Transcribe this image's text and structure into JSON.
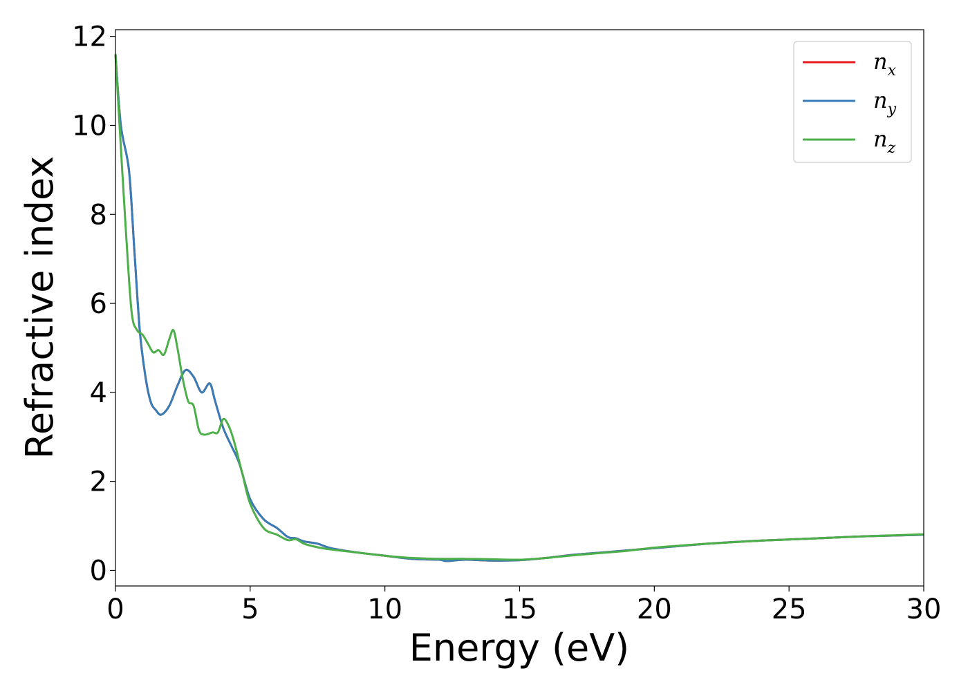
{
  "chart_data": {
    "type": "line",
    "xlabel": "Energy (eV)",
    "ylabel": "Refractive index",
    "xlim": [
      0,
      30
    ],
    "ylim": [
      -0.35,
      12.15
    ],
    "xticks": [
      0,
      5,
      10,
      15,
      20,
      25,
      30
    ],
    "yticks": [
      0,
      2,
      4,
      6,
      8,
      10,
      12
    ],
    "grid": false,
    "legend_position": "top-right",
    "series": [
      {
        "name": "n",
        "subscript": "x",
        "color": "#e41a1c",
        "points": [
          [
            0,
            11.6
          ],
          [
            0.2,
            10.0
          ],
          [
            0.5,
            9.0
          ],
          [
            0.7,
            7.2
          ],
          [
            0.9,
            5.4
          ],
          [
            1.1,
            4.4
          ],
          [
            1.3,
            3.8
          ],
          [
            1.5,
            3.6
          ],
          [
            1.7,
            3.5
          ],
          [
            2.0,
            3.7
          ],
          [
            2.3,
            4.15
          ],
          [
            2.6,
            4.5
          ],
          [
            2.9,
            4.35
          ],
          [
            3.2,
            4.0
          ],
          [
            3.5,
            4.2
          ],
          [
            3.7,
            3.8
          ],
          [
            4.0,
            3.2
          ],
          [
            4.3,
            2.8
          ],
          [
            4.6,
            2.4
          ],
          [
            5.0,
            1.6
          ],
          [
            5.5,
            1.15
          ],
          [
            6.0,
            0.95
          ],
          [
            6.4,
            0.75
          ],
          [
            6.7,
            0.72
          ],
          [
            7.0,
            0.65
          ],
          [
            7.5,
            0.6
          ],
          [
            8.0,
            0.5
          ],
          [
            9.0,
            0.4
          ],
          [
            10.0,
            0.33
          ],
          [
            11.0,
            0.26
          ],
          [
            12.0,
            0.24
          ],
          [
            12.3,
            0.21
          ],
          [
            13.0,
            0.24
          ],
          [
            14.0,
            0.22
          ],
          [
            15.0,
            0.23
          ],
          [
            16.0,
            0.28
          ],
          [
            17.0,
            0.35
          ],
          [
            18.0,
            0.4
          ],
          [
            19.0,
            0.45
          ],
          [
            20.0,
            0.5
          ],
          [
            22.0,
            0.6
          ],
          [
            24.0,
            0.67
          ],
          [
            26.0,
            0.72
          ],
          [
            28.0,
            0.77
          ],
          [
            30.0,
            0.8
          ]
        ]
      },
      {
        "name": "n",
        "subscript": "y",
        "color": "#377eb8",
        "points": [
          [
            0,
            11.6
          ],
          [
            0.2,
            10.0
          ],
          [
            0.5,
            9.0
          ],
          [
            0.7,
            7.2
          ],
          [
            0.9,
            5.4
          ],
          [
            1.1,
            4.4
          ],
          [
            1.3,
            3.8
          ],
          [
            1.5,
            3.6
          ],
          [
            1.7,
            3.5
          ],
          [
            2.0,
            3.7
          ],
          [
            2.3,
            4.15
          ],
          [
            2.6,
            4.5
          ],
          [
            2.9,
            4.35
          ],
          [
            3.2,
            4.0
          ],
          [
            3.5,
            4.2
          ],
          [
            3.7,
            3.8
          ],
          [
            4.0,
            3.2
          ],
          [
            4.3,
            2.8
          ],
          [
            4.6,
            2.4
          ],
          [
            5.0,
            1.6
          ],
          [
            5.5,
            1.15
          ],
          [
            6.0,
            0.95
          ],
          [
            6.4,
            0.75
          ],
          [
            6.7,
            0.72
          ],
          [
            7.0,
            0.65
          ],
          [
            7.5,
            0.6
          ],
          [
            8.0,
            0.5
          ],
          [
            9.0,
            0.4
          ],
          [
            10.0,
            0.33
          ],
          [
            11.0,
            0.26
          ],
          [
            12.0,
            0.24
          ],
          [
            12.3,
            0.21
          ],
          [
            13.0,
            0.24
          ],
          [
            14.0,
            0.22
          ],
          [
            15.0,
            0.23
          ],
          [
            16.0,
            0.28
          ],
          [
            17.0,
            0.35
          ],
          [
            18.0,
            0.4
          ],
          [
            19.0,
            0.45
          ],
          [
            20.0,
            0.5
          ],
          [
            22.0,
            0.6
          ],
          [
            24.0,
            0.67
          ],
          [
            26.0,
            0.72
          ],
          [
            28.0,
            0.77
          ],
          [
            30.0,
            0.8
          ]
        ]
      },
      {
        "name": "n",
        "subscript": "z",
        "color": "#4daf4a",
        "points": [
          [
            0,
            11.6
          ],
          [
            0.2,
            9.5
          ],
          [
            0.4,
            7.5
          ],
          [
            0.6,
            5.8
          ],
          [
            0.8,
            5.4
          ],
          [
            1.0,
            5.3
          ],
          [
            1.2,
            5.1
          ],
          [
            1.4,
            4.9
          ],
          [
            1.6,
            4.95
          ],
          [
            1.8,
            4.85
          ],
          [
            2.0,
            5.2
          ],
          [
            2.15,
            5.4
          ],
          [
            2.3,
            5.0
          ],
          [
            2.5,
            4.3
          ],
          [
            2.7,
            3.8
          ],
          [
            2.9,
            3.7
          ],
          [
            3.1,
            3.15
          ],
          [
            3.3,
            3.05
          ],
          [
            3.6,
            3.1
          ],
          [
            3.8,
            3.1
          ],
          [
            4.0,
            3.4
          ],
          [
            4.2,
            3.25
          ],
          [
            4.4,
            2.9
          ],
          [
            4.7,
            2.2
          ],
          [
            5.0,
            1.5
          ],
          [
            5.5,
            0.95
          ],
          [
            6.0,
            0.8
          ],
          [
            6.4,
            0.68
          ],
          [
            6.7,
            0.7
          ],
          [
            7.0,
            0.6
          ],
          [
            7.5,
            0.52
          ],
          [
            8.0,
            0.47
          ],
          [
            9.0,
            0.4
          ],
          [
            10.0,
            0.33
          ],
          [
            11.0,
            0.28
          ],
          [
            12.0,
            0.26
          ],
          [
            13.0,
            0.26
          ],
          [
            14.0,
            0.25
          ],
          [
            15.0,
            0.24
          ],
          [
            16.0,
            0.28
          ],
          [
            17.0,
            0.34
          ],
          [
            18.0,
            0.39
          ],
          [
            19.0,
            0.44
          ],
          [
            20.0,
            0.51
          ],
          [
            22.0,
            0.6
          ],
          [
            24.0,
            0.67
          ],
          [
            26.0,
            0.72
          ],
          [
            28.0,
            0.77
          ],
          [
            30.0,
            0.81
          ]
        ]
      }
    ]
  }
}
